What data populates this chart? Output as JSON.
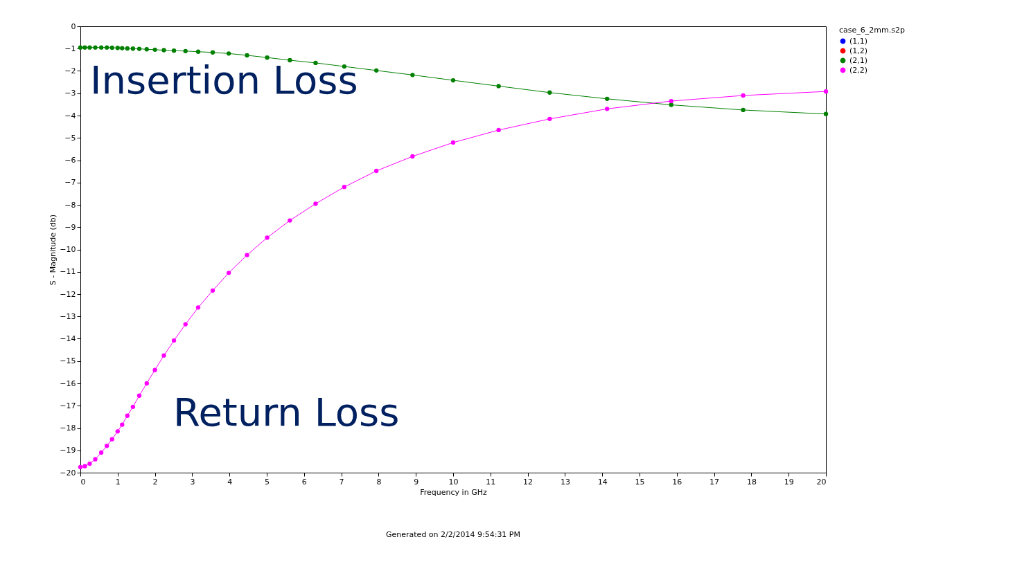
{
  "chart_data": {
    "type": "line",
    "xlabel": "Frequency in GHz",
    "ylabel": "S - Magnitude (db)",
    "legend_title": "case_6_2mm.s2p",
    "x": [
      0.0,
      0.12,
      0.25,
      0.4,
      0.56,
      0.71,
      0.85,
      1.0,
      1.12,
      1.26,
      1.41,
      1.58,
      1.78,
      2.0,
      2.24,
      2.51,
      2.82,
      3.16,
      3.55,
      3.98,
      4.47,
      5.01,
      5.62,
      6.31,
      7.08,
      7.94,
      8.91,
      10.0,
      11.22,
      12.59,
      14.13,
      15.85,
      17.78,
      20.0
    ],
    "series": [
      {
        "name": "(1,1)",
        "color": "#0000ff",
        "values": [
          null,
          null,
          null,
          null,
          null,
          null,
          null,
          null,
          null,
          null,
          null,
          null,
          null,
          null,
          null,
          null,
          null,
          null,
          null,
          null,
          null,
          null,
          null,
          null,
          null,
          null,
          null,
          null,
          null,
          null,
          null,
          null,
          null,
          null
        ]
      },
      {
        "name": "(1,2)",
        "color": "#ff0000",
        "values": [
          null,
          null,
          null,
          null,
          null,
          null,
          null,
          null,
          null,
          null,
          null,
          null,
          null,
          null,
          null,
          null,
          null,
          null,
          null,
          null,
          null,
          null,
          null,
          null,
          null,
          null,
          null,
          null,
          null,
          null,
          null,
          null,
          null,
          null
        ]
      },
      {
        "name": "(2,1)",
        "color": "#008000",
        "values": [
          -0.95,
          -0.95,
          -0.95,
          -0.95,
          -0.95,
          -0.95,
          -0.96,
          -0.97,
          -0.98,
          -0.99,
          -1.0,
          -1.01,
          -1.03,
          -1.05,
          -1.07,
          -1.09,
          -1.11,
          -1.14,
          -1.17,
          -1.22,
          -1.3,
          -1.4,
          -1.52,
          -1.64,
          -1.8,
          -1.98,
          -2.18,
          -2.42,
          -2.68,
          -2.97,
          -3.25,
          -3.52,
          -3.75,
          -3.93
        ]
      },
      {
        "name": "(2,2)",
        "color": "#ff00ff",
        "values": [
          -19.75,
          -19.71,
          -19.6,
          -19.4,
          -19.1,
          -18.8,
          -18.5,
          -18.15,
          -17.85,
          -17.45,
          -17.05,
          -16.55,
          -16.0,
          -15.4,
          -14.75,
          -14.08,
          -13.35,
          -12.6,
          -11.84,
          -11.05,
          -10.25,
          -9.47,
          -8.7,
          -7.95,
          -7.2,
          -6.48,
          -5.83,
          -5.21,
          -4.65,
          -4.15,
          -3.7,
          -3.35,
          -3.1,
          -2.92
        ]
      }
    ],
    "xlim": [
      0,
      20
    ],
    "xticks": [
      0,
      1,
      2,
      3,
      4,
      5,
      6,
      7,
      8,
      9,
      10,
      11,
      12,
      13,
      14,
      15,
      16,
      17,
      18,
      19,
      20
    ],
    "ylim": [
      -20,
      0
    ],
    "yticks": [
      0,
      -1,
      -2,
      -3,
      -4,
      -5,
      -6,
      -7,
      -8,
      -9,
      -10,
      -11,
      -12,
      -13,
      -14,
      -15,
      -16,
      -17,
      -18,
      -19,
      -20
    ],
    "grid": false,
    "legend": "right",
    "marker": "circle",
    "line_style": "solid",
    "annotations": [
      "Insertion Loss",
      "Return Loss",
      "Generated on 2/2/2014 9:54:31 PM"
    ]
  }
}
